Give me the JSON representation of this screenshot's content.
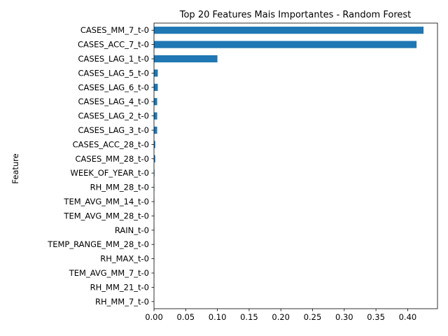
{
  "chart_data": {
    "type": "bar",
    "orientation": "horizontal",
    "title": "Top 20 Features Mais Importantes - Random Forest",
    "xlabel": "",
    "ylabel": "Feature",
    "xlim": [
      0,
      0.447
    ],
    "xticks": [
      "0.00",
      "0.05",
      "0.10",
      "0.15",
      "0.20",
      "0.25",
      "0.30",
      "0.35",
      "0.40"
    ],
    "xtick_values": [
      0,
      0.05,
      0.1,
      0.15,
      0.2,
      0.25,
      0.3,
      0.35,
      0.4
    ],
    "grid": false,
    "bar_color": "#1f77b4",
    "categories": [
      "CASES_MM_7_t-0",
      "CASES_ACC_7_t-0",
      "CASES_LAG_1_t-0",
      "CASES_LAG_5_t-0",
      "CASES_LAG_6_t-0",
      "CASES_LAG_4_t-0",
      "CASES_LAG_2_t-0",
      "CASES_LAG_3_t-0",
      "CASES_ACC_28_t-0",
      "CASES_MM_28_t-0",
      "WEEK_OF_YEAR_t-0",
      "RH_MM_28_t-0",
      "TEM_AVG_MM_14_t-0",
      "TEM_AVG_MM_28_t-0",
      "RAIN_t-0",
      "TEMP_RANGE_MM_28_t-0",
      "RH_MAX_t-0",
      "TEM_AVG_MM_7_t-0",
      "RH_MM_21_t-0",
      "RH_MM_7_t-0"
    ],
    "values": [
      0.425,
      0.414,
      0.1,
      0.006,
      0.006,
      0.005,
      0.005,
      0.005,
      0.002,
      0.002,
      0.0008,
      0.0006,
      0.0005,
      0.0005,
      0.0004,
      0.0004,
      0.0003,
      0.0003,
      0.0003,
      0.0002
    ]
  }
}
